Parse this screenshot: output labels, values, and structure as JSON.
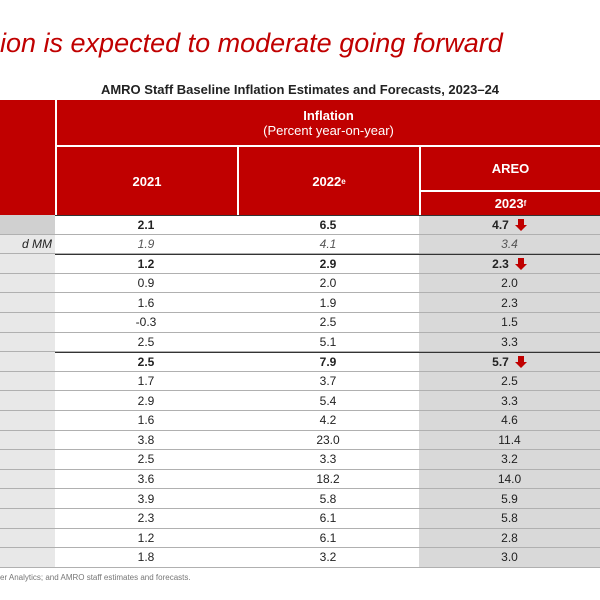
{
  "header": {
    "title": "ion is expected to moderate going forward",
    "subtitle": "AMRO Staff Baseline Inflation Estimates and Forecasts, 2023–24"
  },
  "table": {
    "group": "Inflation",
    "group_sub": "(Percent year-on-year)",
    "columns": [
      {
        "text": "2021"
      },
      {
        "text": "2022",
        "sup": "e"
      }
    ],
    "forecast_group": "AREO",
    "forecast_year": {
      "text": "2023",
      "sup": "f"
    },
    "rows": [
      {
        "cells": [
          "2.1",
          "6.5",
          "4.7"
        ],
        "bold": true,
        "trend": "down"
      },
      {
        "label": "d MM",
        "cells": [
          "1.9",
          "4.1",
          "3.4"
        ],
        "italic": true
      },
      {
        "cells": [
          "1.2",
          "2.9",
          "2.3"
        ],
        "bold": true,
        "trend": "down"
      },
      {
        "cells": [
          "0.9",
          "2.0",
          "2.0"
        ]
      },
      {
        "cells": [
          "1.6",
          "1.9",
          "2.3"
        ]
      },
      {
        "cells": [
          "-0.3",
          "2.5",
          "1.5"
        ]
      },
      {
        "cells": [
          "2.5",
          "5.1",
          "3.3"
        ]
      },
      {
        "cells": [
          "2.5",
          "7.9",
          "5.7"
        ],
        "bold": true,
        "trend": "down"
      },
      {
        "cells": [
          "1.7",
          "3.7",
          "2.5"
        ]
      },
      {
        "cells": [
          "2.9",
          "5.4",
          "3.3"
        ]
      },
      {
        "cells": [
          "1.6",
          "4.2",
          "4.6"
        ]
      },
      {
        "cells": [
          "3.8",
          "23.0",
          "11.4"
        ]
      },
      {
        "cells": [
          "2.5",
          "3.3",
          "3.2"
        ]
      },
      {
        "cells": [
          "3.6",
          "18.2",
          "14.0"
        ]
      },
      {
        "cells": [
          "3.9",
          "5.8",
          "5.9"
        ]
      },
      {
        "cells": [
          "2.3",
          "6.1",
          "5.8"
        ]
      },
      {
        "cells": [
          "1.2",
          "6.1",
          "2.8"
        ]
      },
      {
        "cells": [
          "1.8",
          "3.2",
          "3.0"
        ]
      }
    ]
  },
  "footnote": "er Analytics; and AMRO staff estimates and forecasts."
}
